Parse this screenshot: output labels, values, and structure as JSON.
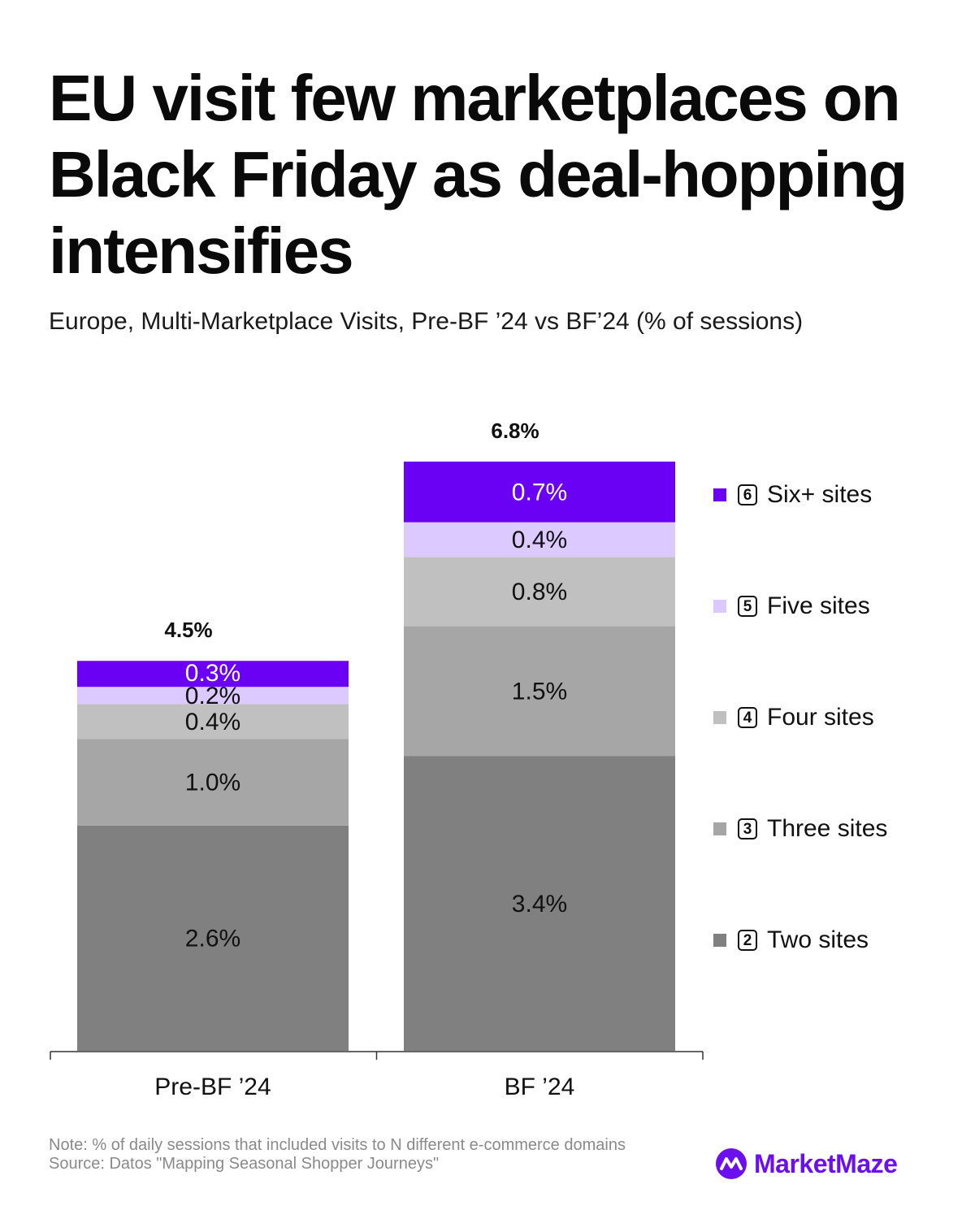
{
  "title": "EU visit few marketplaces on Black Friday as deal-hopping intensifies",
  "subtitle": "Europe, Multi-Marketplace Visits, Pre-BF ’24 vs BF’24 (% of sessions)",
  "note": "Note: %  of daily sessions that included visits to N different e-commerce domains",
  "source": "Source: Datos \"Mapping Seasonal Shopper Journeys\"",
  "brand": {
    "name": "MarketMaze",
    "icon": "marketmaze-logo-icon",
    "color": "#6b0ff0"
  },
  "legend": [
    {
      "num": "6",
      "label": "Six+ sites",
      "color": "#6a00f4"
    },
    {
      "num": "5",
      "label": "Five sites",
      "color": "#dcc9ff"
    },
    {
      "num": "4",
      "label": "Four sites",
      "color": "#c0c0c0"
    },
    {
      "num": "3",
      "label": "Three sites",
      "color": "#a6a6a6"
    },
    {
      "num": "2",
      "label": "Two sites",
      "color": "#808080"
    }
  ],
  "chart_data": {
    "type": "bar",
    "stacked": true,
    "categories": [
      "Pre-BF ’24",
      "BF ’24"
    ],
    "totals": [
      4.5,
      6.8
    ],
    "total_labels": [
      "4.5%",
      "6.8%"
    ],
    "ylim": [
      0,
      6.8
    ],
    "series": [
      {
        "name": "Two sites",
        "color": "#808080",
        "label_color": "#111111",
        "values": [
          2.6,
          3.4
        ],
        "labels": [
          "2.6%",
          "3.4%"
        ]
      },
      {
        "name": "Three sites",
        "color": "#a6a6a6",
        "label_color": "#111111",
        "values": [
          1.0,
          1.5
        ],
        "labels": [
          "1.0%",
          "1.5%"
        ]
      },
      {
        "name": "Four sites",
        "color": "#c0c0c0",
        "label_color": "#111111",
        "values": [
          0.4,
          0.8
        ],
        "labels": [
          "0.4%",
          "0.8%"
        ]
      },
      {
        "name": "Five sites",
        "color": "#dcc9ff",
        "label_color": "#111111",
        "values": [
          0.2,
          0.4
        ],
        "labels": [
          "0.2%",
          "0.4%"
        ]
      },
      {
        "name": "Six+ sites",
        "color": "#6a00f4",
        "label_color": "#ffffff",
        "values": [
          0.3,
          0.7
        ],
        "labels": [
          "0.3%",
          "0.7%"
        ]
      }
    ],
    "legend_position": "right"
  }
}
